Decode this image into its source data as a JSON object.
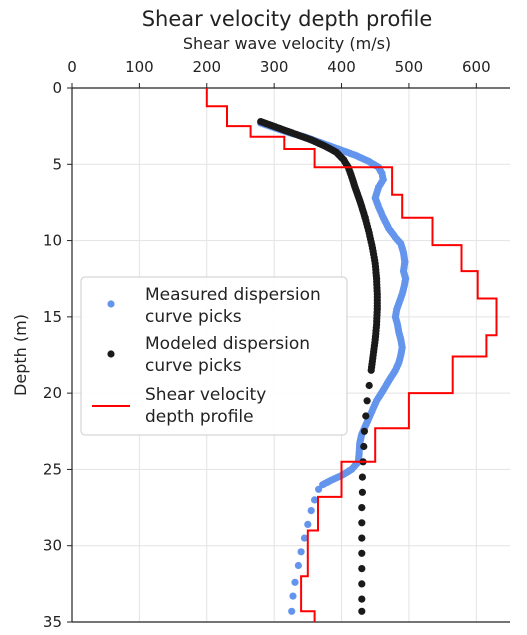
{
  "chart_data": {
    "type": "scatter",
    "title": "Shear velocity depth profile",
    "xlabel": "Shear wave velocity (m/s)",
    "ylabel": "Depth (m)",
    "xlim": [
      0,
      650
    ],
    "ylim": [
      35,
      0
    ],
    "x_axis_position": "top",
    "y_inverted": true,
    "grid": true,
    "legend_position": "middle-left",
    "x_ticks": [
      "0",
      "100",
      "200",
      "300",
      "400",
      "500",
      "600"
    ],
    "y_ticks": [
      "0",
      "5",
      "10",
      "15",
      "20",
      "25",
      "30",
      "35"
    ],
    "colors": {
      "measured": "#6495ED",
      "modeled": "#1a1a1a",
      "profile": "#ff0000",
      "grid": "#e3e3e3"
    },
    "series": [
      {
        "name": "Measured dispersion curve picks",
        "kind": "scatter",
        "color": "#6495ED",
        "points": [
          [
            280,
            2.3
          ],
          [
            300,
            2.6
          ],
          [
            320,
            2.9
          ],
          [
            345,
            3.2
          ],
          [
            370,
            3.6
          ],
          [
            395,
            4.0
          ],
          [
            420,
            4.4
          ],
          [
            440,
            4.8
          ],
          [
            455,
            5.2
          ],
          [
            460,
            5.6
          ],
          [
            462,
            6.0
          ],
          [
            455,
            6.5
          ],
          [
            450,
            7.2
          ],
          [
            455,
            7.8
          ],
          [
            462,
            8.5
          ],
          [
            470,
            9.2
          ],
          [
            480,
            9.8
          ],
          [
            488,
            10.2
          ],
          [
            492,
            10.8
          ],
          [
            494,
            11.4
          ],
          [
            492,
            12.0
          ],
          [
            495,
            12.5
          ],
          [
            493,
            13.0
          ],
          [
            490,
            13.5
          ],
          [
            486,
            14.0
          ],
          [
            482,
            14.5
          ],
          [
            480,
            15.0
          ],
          [
            483,
            15.5
          ],
          [
            485,
            16.0
          ],
          [
            488,
            16.5
          ],
          [
            490,
            17.0
          ],
          [
            488,
            17.5
          ],
          [
            485,
            18.0
          ],
          [
            480,
            18.5
          ],
          [
            470,
            19.2
          ],
          [
            462,
            19.8
          ],
          [
            452,
            20.5
          ],
          [
            445,
            21.2
          ],
          [
            440,
            21.7
          ],
          [
            435,
            22.2
          ],
          [
            430,
            22.7
          ],
          [
            427,
            23.3
          ],
          [
            426,
            24.0
          ],
          [
            425,
            24.5
          ],
          [
            415,
            25.0
          ],
          [
            400,
            25.4
          ],
          [
            385,
            25.7
          ],
          [
            372,
            26.0
          ],
          [
            366,
            26.3
          ],
          [
            360,
            27.0
          ],
          [
            355,
            27.7
          ],
          [
            350,
            28.6
          ],
          [
            345,
            29.5
          ],
          [
            340,
            30.4
          ],
          [
            336,
            31.3
          ],
          [
            331,
            32.4
          ],
          [
            328,
            33.3
          ],
          [
            326,
            34.3
          ]
        ]
      },
      {
        "name": "Modeled dispersion curve picks",
        "kind": "scatter",
        "color": "#1a1a1a",
        "points": [
          [
            280,
            2.2
          ],
          [
            305,
            2.6
          ],
          [
            330,
            3.0
          ],
          [
            355,
            3.4
          ],
          [
            375,
            3.8
          ],
          [
            392,
            4.2
          ],
          [
            403,
            4.7
          ],
          [
            410,
            5.2
          ],
          [
            415,
            5.8
          ],
          [
            420,
            6.5
          ],
          [
            428,
            7.5
          ],
          [
            435,
            8.5
          ],
          [
            441,
            9.5
          ],
          [
            446,
            10.5
          ],
          [
            450,
            11.5
          ],
          [
            452,
            12.5
          ],
          [
            453,
            13.5
          ],
          [
            453,
            14.5
          ],
          [
            452,
            15.5
          ],
          [
            450,
            16.5
          ],
          [
            447,
            17.5
          ],
          [
            444,
            18.5
          ],
          [
            441,
            19.5
          ],
          [
            438,
            20.5
          ],
          [
            436,
            21.5
          ],
          [
            434,
            22.5
          ],
          [
            433,
            23.5
          ],
          [
            432,
            24.5
          ],
          [
            431,
            25.5
          ],
          [
            431,
            26.5
          ],
          [
            430,
            27.5
          ],
          [
            430,
            28.5
          ],
          [
            430,
            29.5
          ],
          [
            430,
            30.5
          ],
          [
            430,
            31.5
          ],
          [
            430,
            32.5
          ],
          [
            430,
            33.5
          ],
          [
            430,
            34.3
          ]
        ]
      },
      {
        "name": "Shear velocity depth profile",
        "kind": "step",
        "color": "#ff0000",
        "points": [
          [
            200,
            0
          ],
          [
            200,
            1.2
          ],
          [
            230,
            1.2
          ],
          [
            230,
            2.5
          ],
          [
            265,
            2.5
          ],
          [
            265,
            3.2
          ],
          [
            315,
            3.2
          ],
          [
            315,
            4.0
          ],
          [
            360,
            4.0
          ],
          [
            360,
            5.2
          ],
          [
            475,
            5.2
          ],
          [
            475,
            7.0
          ],
          [
            490,
            7.0
          ],
          [
            490,
            8.5
          ],
          [
            535,
            8.5
          ],
          [
            535,
            10.3
          ],
          [
            578,
            10.3
          ],
          [
            578,
            12.0
          ],
          [
            602,
            12.0
          ],
          [
            602,
            13.8
          ],
          [
            630,
            13.8
          ],
          [
            630,
            16.2
          ],
          [
            615,
            16.2
          ],
          [
            615,
            17.6
          ],
          [
            565,
            17.6
          ],
          [
            565,
            20.0
          ],
          [
            500,
            20.0
          ],
          [
            500,
            22.3
          ],
          [
            450,
            22.3
          ],
          [
            450,
            24.5
          ],
          [
            400,
            24.5
          ],
          [
            400,
            26.8
          ],
          [
            365,
            26.8
          ],
          [
            365,
            29.0
          ],
          [
            350,
            29.0
          ],
          [
            350,
            32.0
          ],
          [
            340,
            32.0
          ],
          [
            340,
            34.3
          ],
          [
            360,
            34.3
          ],
          [
            360,
            35.0
          ]
        ]
      }
    ]
  }
}
